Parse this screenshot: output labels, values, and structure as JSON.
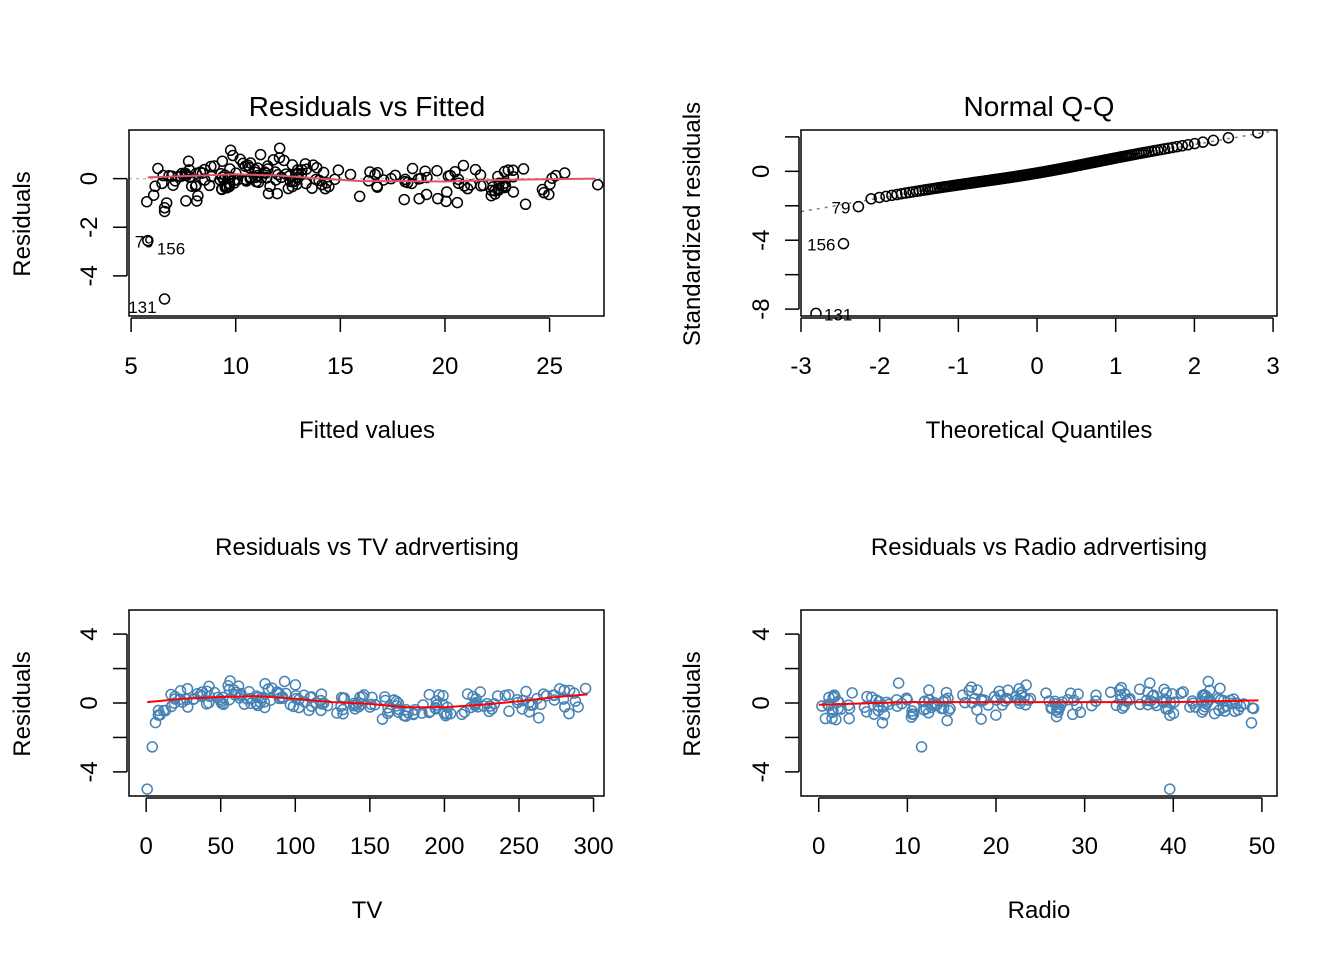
{
  "chart_data": [
    {
      "id": "resid-fitted",
      "type": "scatter",
      "title": "Residuals vs Fitted",
      "xlabel": "Fitted values",
      "ylabel": "Residuals",
      "xlim": [
        4.9,
        27.6
      ],
      "ylim": [
        -5.65,
        2.0
      ],
      "xticks": [
        5,
        10,
        15,
        20,
        25
      ],
      "yticks": [
        -4,
        -2,
        0
      ],
      "point_color": "#000000",
      "smooth_color": "#DF536B",
      "reference_line": 0,
      "seed": 11,
      "n_points": 190,
      "outliers": [
        {
          "x": 5.8,
          "y": -2.55,
          "label": "156"
        },
        {
          "x": 6.6,
          "y": -4.95,
          "label": "131"
        },
        {
          "x": 5.75,
          "y": -0.95,
          "label": "79"
        }
      ],
      "smooth": [
        [
          5.8,
          0.05
        ],
        [
          8,
          0.12
        ],
        [
          10,
          0.18
        ],
        [
          12,
          0.13
        ],
        [
          14,
          0.0
        ],
        [
          16,
          -0.1
        ],
        [
          18,
          -0.1
        ],
        [
          20,
          -0.12
        ],
        [
          23,
          -0.05
        ],
        [
          27.2,
          0.0
        ]
      ],
      "annotations": [
        "79",
        "156",
        "131"
      ]
    },
    {
      "id": "qq",
      "type": "scatter",
      "title": "Normal Q-Q",
      "xlabel": "Theoretical Quantiles",
      "ylabel": "Standardized residuals",
      "xlim": [
        -3.0,
        3.05
      ],
      "ylim": [
        -8.4,
        2.4
      ],
      "xticks": [
        -3,
        -2,
        -1,
        0,
        1,
        2,
        3
      ],
      "yticks": [
        -8,
        -6,
        -4,
        -2,
        0,
        2
      ],
      "ytick_labels": [
        "-8",
        "",
        "-4",
        "",
        "0",
        ""
      ],
      "point_color": "#000000",
      "ref_line": {
        "intercept": 0,
        "slope": 0.78,
        "color": "#808080"
      },
      "n_points": 200,
      "outliers": [
        {
          "x": -2.81,
          "y": -8.25,
          "label": "131"
        },
        {
          "x": -2.46,
          "y": -4.2,
          "label": "156"
        },
        {
          "x": -2.27,
          "y": -2.05,
          "label": "79"
        }
      ],
      "annotations": [
        "79",
        "156",
        "131"
      ]
    },
    {
      "id": "resid-tv",
      "type": "scatter",
      "title": "Residuals vs TV adrvertising",
      "xlabel": "TV",
      "ylabel": "Residuals",
      "xlim": [
        -11.5,
        307
      ],
      "ylim": [
        -5.4,
        5.4
      ],
      "xticks": [
        0,
        50,
        100,
        150,
        200,
        250,
        300
      ],
      "yticks": [
        -4,
        -2,
        0,
        2,
        4
      ],
      "ytick_labels": [
        "-4",
        "",
        "0",
        "",
        "4"
      ],
      "point_color": "#4682B4",
      "smooth_color": "#FF0000",
      "seed": 23,
      "n_points": 200,
      "outliers": [
        {
          "x": 0.7,
          "y": -5.0
        },
        {
          "x": 4.1,
          "y": -2.55
        }
      ],
      "smooth": [
        [
          0.7,
          0.05
        ],
        [
          25,
          0.25
        ],
        [
          50,
          0.35
        ],
        [
          75,
          0.4
        ],
        [
          100,
          0.25
        ],
        [
          125,
          0.05
        ],
        [
          150,
          -0.05
        ],
        [
          175,
          -0.25
        ],
        [
          200,
          -0.25
        ],
        [
          225,
          -0.1
        ],
        [
          250,
          0.1
        ],
        [
          275,
          0.35
        ],
        [
          296,
          0.5
        ]
      ]
    },
    {
      "id": "resid-radio",
      "type": "scatter",
      "title": "Residuals vs Radio adrvertising",
      "xlabel": "Radio",
      "ylabel": "Residuals",
      "xlim": [
        -2.0,
        51.7
      ],
      "ylim": [
        -5.4,
        5.4
      ],
      "xticks": [
        0,
        10,
        20,
        30,
        40,
        50
      ],
      "yticks": [
        -4,
        -2,
        0,
        2,
        4
      ],
      "ytick_labels": [
        "-4",
        "",
        "0",
        "",
        "4"
      ],
      "point_color": "#4682B4",
      "smooth_color": "#FF0000",
      "seed": 37,
      "n_points": 200,
      "outliers": [
        {
          "x": 11.6,
          "y": -2.55
        },
        {
          "x": 39.6,
          "y": -5.0
        }
      ],
      "smooth": [
        [
          0,
          -0.1
        ],
        [
          10,
          0.05
        ],
        [
          20,
          0.05
        ],
        [
          30,
          0.05
        ],
        [
          40,
          0.05
        ],
        [
          49.6,
          0.15
        ]
      ]
    }
  ]
}
